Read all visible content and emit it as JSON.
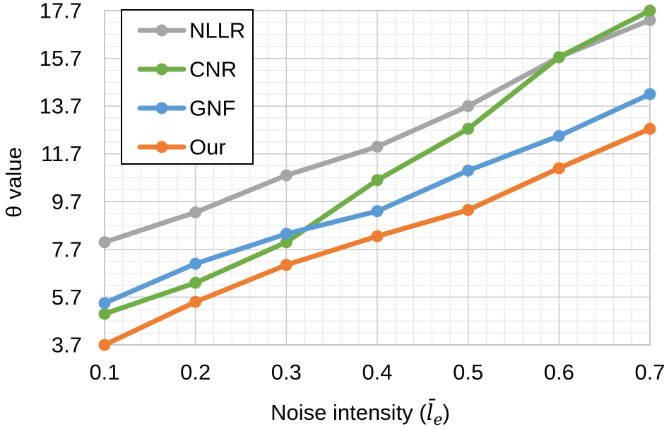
{
  "chart_data": {
    "type": "line",
    "title": "",
    "xlabel": "Noise intensity (",
    "xlabel_math": "l̄",
    "xlabel_sub": "e",
    "xlabel_close": ")",
    "ylabel": "θ value",
    "x": [
      0.1,
      0.2,
      0.3,
      0.4,
      0.5,
      0.6,
      0.7
    ],
    "x_tick_labels": [
      "0.1",
      "0.2",
      "0.3",
      "0.4",
      "0.5",
      "0.6",
      "0.7"
    ],
    "y_ticks": [
      3.7,
      5.7,
      7.7,
      9.7,
      11.7,
      13.7,
      15.7,
      17.7
    ],
    "y_tick_labels": [
      "3.7",
      "5.7",
      "7.7",
      "9.7",
      "11.7",
      "13.7",
      "15.7",
      "17.7"
    ],
    "xlim": [
      0.1,
      0.7
    ],
    "ylim": [
      3.7,
      17.7
    ],
    "minor_grid_step": 0.5,
    "grid": true,
    "legend_position": "top-left",
    "series": [
      {
        "name": "NLLR",
        "color": "#a5a5a5",
        "values": [
          8.0,
          9.25,
          10.8,
          12.0,
          13.7,
          15.75,
          17.3
        ]
      },
      {
        "name": "CNR",
        "color": "#70ad47",
        "values": [
          5.0,
          6.3,
          8.0,
          10.6,
          12.75,
          15.75,
          17.7
        ]
      },
      {
        "name": "GNF",
        "color": "#5b9bd5",
        "values": [
          5.45,
          7.1,
          8.35,
          9.3,
          11.0,
          12.45,
          14.2
        ]
      },
      {
        "name": "Our",
        "color": "#ed7d31",
        "values": [
          3.7,
          5.5,
          7.05,
          8.25,
          9.35,
          11.1,
          12.75
        ]
      }
    ]
  }
}
